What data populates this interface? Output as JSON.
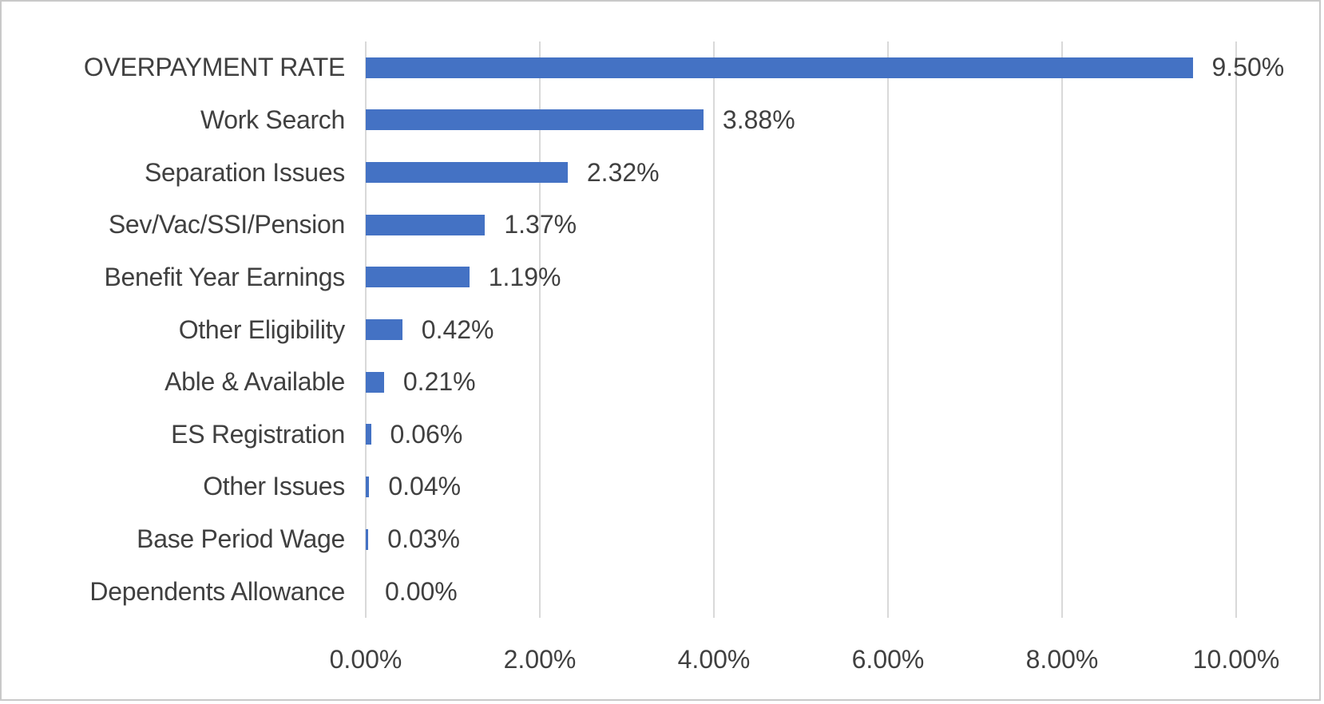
{
  "chart_data": {
    "type": "bar",
    "orientation": "horizontal",
    "title": "",
    "xlabel": "",
    "ylabel": "",
    "categories": [
      "OVERPAYMENT RATE",
      "Work Search",
      "Separation Issues",
      "Sev/Vac/SSI/Pension",
      "Benefit Year Earnings",
      "Other Eligibility",
      "Able & Available",
      "ES Registration",
      "Other Issues",
      "Base Period Wage",
      "Dependents Allowance"
    ],
    "values": [
      9.5,
      3.88,
      2.32,
      1.37,
      1.19,
      0.42,
      0.21,
      0.06,
      0.04,
      0.03,
      0.0
    ],
    "value_labels": [
      "9.50%",
      "3.88%",
      "2.32%",
      "1.37%",
      "1.19%",
      "0.42%",
      "0.21%",
      "0.06%",
      "0.04%",
      "0.03%",
      "0.00%"
    ],
    "x_ticks": [
      "0.00%",
      "2.00%",
      "4.00%",
      "6.00%",
      "8.00%",
      "10.00%"
    ],
    "x_tick_values": [
      0,
      2,
      4,
      6,
      8,
      10
    ],
    "xlim": [
      0,
      10
    ],
    "grid": true,
    "legend": "none",
    "bar_color": "#4472C4",
    "gridline_color": "#D9D9D9",
    "text_color": "#404040",
    "border_color": "#C9C9C9"
  }
}
